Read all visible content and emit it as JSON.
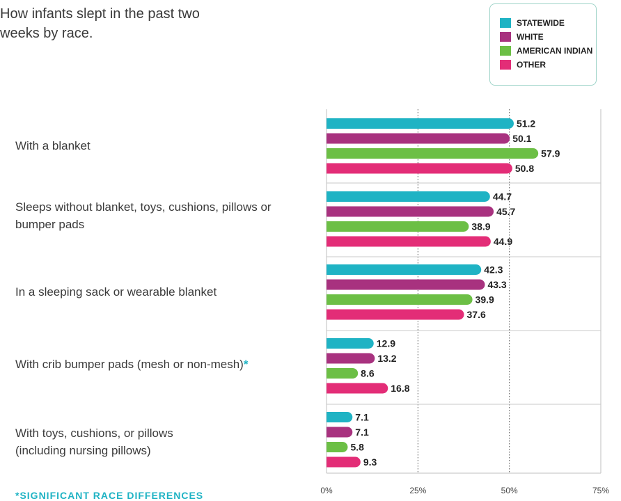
{
  "title": "How infants slept in the past two weeks by race.",
  "footnote": "*SIGNIFICANT RACE DIFFERENCES",
  "colors": {
    "statewide": "#1fb3c4",
    "white": "#a8327f",
    "american_indian": "#6cbf45",
    "other": "#e32d77",
    "legend_border": "#9fd4c9",
    "significance_mark": "#1fb3c4"
  },
  "chart_data": {
    "type": "bar",
    "orientation": "horizontal",
    "categories": [
      "With a blanket",
      "Sleeps without blanket, toys, cushions, pillows or bumper pads",
      "In a sleeping sack or wearable blanket",
      "With crib bumper pads (mesh or non-mesh)",
      "With toys, cushions, or pillows (including nursing pillows)"
    ],
    "category_marks": [
      "",
      "",
      "",
      "*",
      ""
    ],
    "series": [
      {
        "name": "STATEWIDE",
        "values": [
          51.2,
          44.7,
          42.3,
          12.9,
          7.1
        ]
      },
      {
        "name": "WHITE",
        "values": [
          50.1,
          45.7,
          43.3,
          13.2,
          7.1
        ]
      },
      {
        "name": "AMERICAN INDIAN",
        "values": [
          57.9,
          38.9,
          39.9,
          8.6,
          5.8
        ]
      },
      {
        "name": "OTHER",
        "values": [
          50.8,
          44.9,
          37.6,
          16.8,
          9.3
        ]
      }
    ],
    "xlim": [
      0,
      75
    ],
    "ticks": [
      0,
      25,
      50,
      75
    ],
    "tick_labels": [
      "0%",
      "25%",
      "50%",
      "75%"
    ],
    "legend_position": "top-right",
    "grid": "vertical dotted"
  }
}
